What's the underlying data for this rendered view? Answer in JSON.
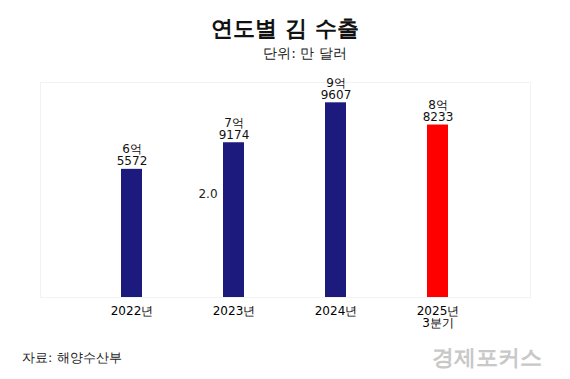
{
  "chart_data": {
    "type": "bar",
    "title": "연도별 김 수출",
    "subtitle": "단위: 만 달러",
    "categories": [
      "2022년",
      "2023년",
      "2024년",
      "2025년\n3분기"
    ],
    "values": [
      65572,
      79174,
      99607,
      88233
    ],
    "value_labels": [
      "6억\n5572",
      "7억\n9174",
      "9억\n9607",
      "8억\n8233"
    ],
    "colors": [
      "#1c1a7c",
      "#1c1a7c",
      "#1c1a7c",
      "#ff0000"
    ],
    "ylim": [
      0,
      110000
    ],
    "data_labels": true,
    "tick_labels": "x",
    "grid": false,
    "annotations": [
      "2.0"
    ],
    "source": "자료: 해양수산부",
    "watermark": "경제포커스"
  }
}
